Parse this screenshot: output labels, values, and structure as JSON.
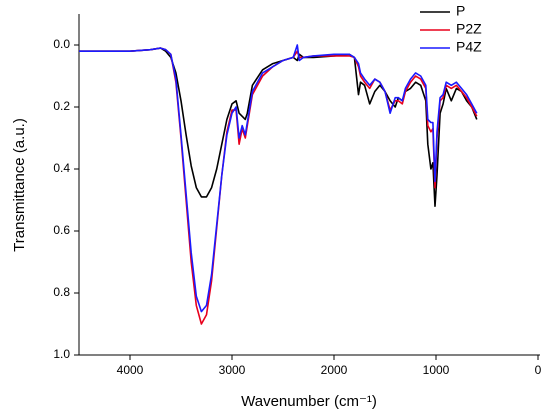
{
  "chart_data": {
    "type": "line",
    "xlabel": "Wavenumber (cm⁻¹)",
    "ylabel": "Transmittance (a.u.)",
    "x": [
      4500,
      4000,
      3800,
      3700,
      3650,
      3600,
      3550,
      3500,
      3450,
      3400,
      3350,
      3300,
      3250,
      3200,
      3150,
      3100,
      3050,
      3000,
      2960,
      2930,
      2900,
      2870,
      2850,
      2800,
      2700,
      2600,
      2500,
      2400,
      2360,
      2340,
      2300,
      2200,
      2000,
      1850,
      1800,
      1760,
      1740,
      1700,
      1650,
      1600,
      1550,
      1500,
      1450,
      1400,
      1370,
      1330,
      1300,
      1250,
      1200,
      1150,
      1100,
      1080,
      1050,
      1030,
      1010,
      990,
      960,
      930,
      900,
      850,
      800,
      750,
      700,
      650,
      600
    ],
    "series": [
      {
        "name": "P",
        "color": "#000000",
        "values": [
          0.02,
          0.02,
          0.015,
          0.01,
          0.02,
          0.04,
          0.09,
          0.18,
          0.29,
          0.39,
          0.46,
          0.49,
          0.49,
          0.46,
          0.4,
          0.32,
          0.24,
          0.19,
          0.18,
          0.22,
          0.23,
          0.24,
          0.22,
          0.13,
          0.08,
          0.06,
          0.05,
          0.04,
          0.05,
          0.03,
          0.04,
          0.04,
          0.035,
          0.03,
          0.04,
          0.16,
          0.12,
          0.13,
          0.19,
          0.15,
          0.13,
          0.15,
          0.18,
          0.2,
          0.17,
          0.18,
          0.15,
          0.14,
          0.12,
          0.13,
          0.18,
          0.32,
          0.4,
          0.38,
          0.52,
          0.42,
          0.22,
          0.19,
          0.14,
          0.18,
          0.14,
          0.15,
          0.18,
          0.2,
          0.24
        ]
      },
      {
        "name": "P2Z",
        "color": "#e8001c",
        "values": [
          0.02,
          0.02,
          0.015,
          0.01,
          0.015,
          0.03,
          0.12,
          0.3,
          0.5,
          0.7,
          0.84,
          0.9,
          0.87,
          0.76,
          0.59,
          0.42,
          0.28,
          0.21,
          0.21,
          0.32,
          0.27,
          0.3,
          0.26,
          0.16,
          0.1,
          0.07,
          0.05,
          0.04,
          0.02,
          0.04,
          0.04,
          0.035,
          0.035,
          0.035,
          0.04,
          0.07,
          0.1,
          0.12,
          0.14,
          0.11,
          0.12,
          0.15,
          0.21,
          0.18,
          0.18,
          0.19,
          0.15,
          0.12,
          0.1,
          0.11,
          0.14,
          0.26,
          0.28,
          0.27,
          0.46,
          0.3,
          0.18,
          0.17,
          0.13,
          0.14,
          0.13,
          0.15,
          0.17,
          0.2,
          0.23
        ]
      },
      {
        "name": "P4Z",
        "color": "#1a1aff",
        "values": [
          0.02,
          0.02,
          0.015,
          0.01,
          0.015,
          0.03,
          0.11,
          0.29,
          0.48,
          0.67,
          0.81,
          0.86,
          0.84,
          0.74,
          0.58,
          0.42,
          0.29,
          0.22,
          0.2,
          0.3,
          0.26,
          0.29,
          0.25,
          0.15,
          0.09,
          0.07,
          0.05,
          0.04,
          0.0,
          0.05,
          0.04,
          0.035,
          0.03,
          0.03,
          0.04,
          0.06,
          0.09,
          0.11,
          0.13,
          0.11,
          0.12,
          0.15,
          0.22,
          0.17,
          0.17,
          0.18,
          0.14,
          0.11,
          0.09,
          0.1,
          0.13,
          0.24,
          0.25,
          0.25,
          0.44,
          0.28,
          0.17,
          0.16,
          0.12,
          0.13,
          0.12,
          0.14,
          0.16,
          0.19,
          0.22
        ]
      }
    ],
    "xlim": [
      4500,
      0
    ],
    "xticks": [
      4000,
      3000,
      2000,
      1000,
      0
    ],
    "ylim": [
      1.0,
      -0.1
    ],
    "yticks": [
      {
        "value": 0.0,
        "label": "0.0"
      },
      0.2,
      0.4,
      0.6,
      0.8,
      {
        "value": 1.0,
        "label": "1.0"
      }
    ],
    "legend": "upper right"
  }
}
